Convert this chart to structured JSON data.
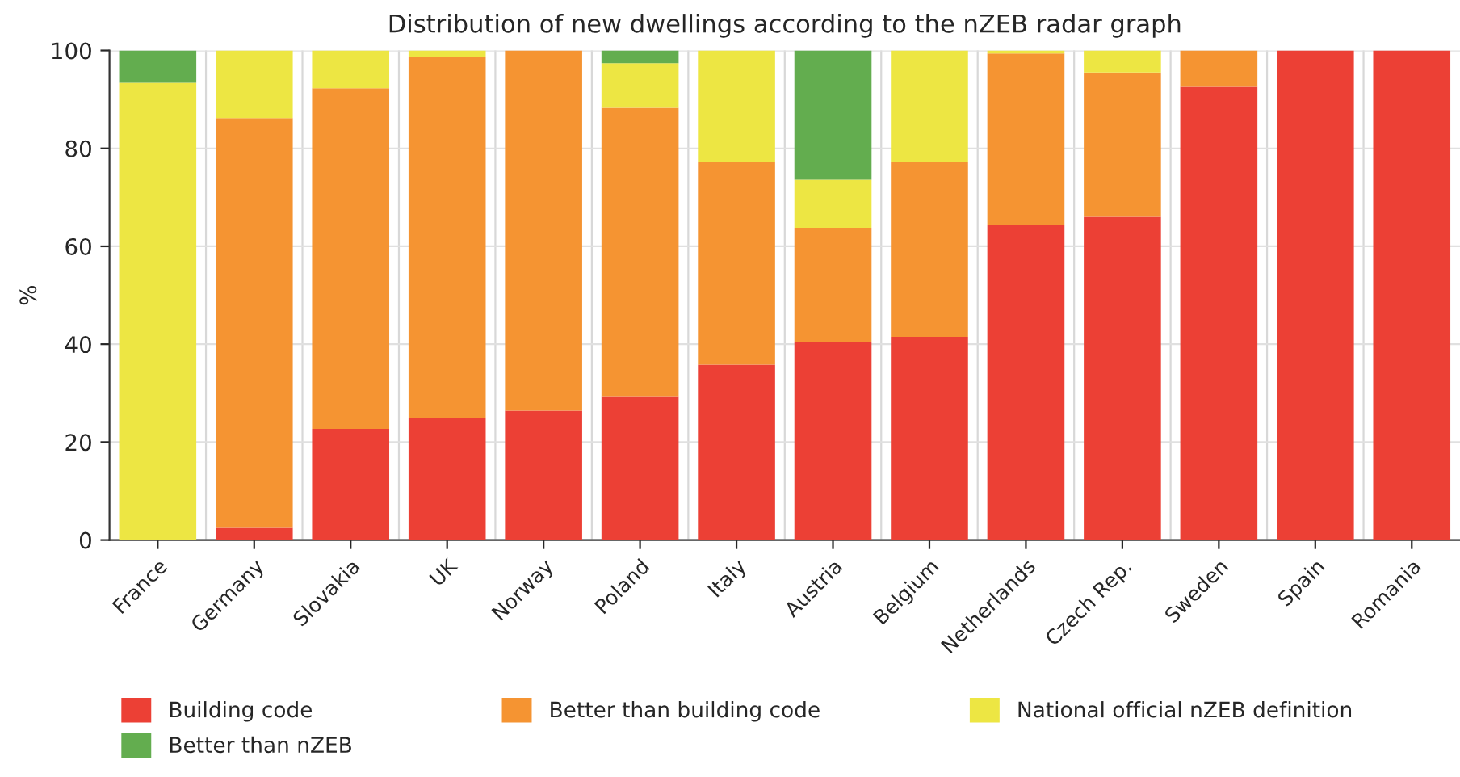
{
  "chart_data": {
    "type": "bar",
    "stacked": true,
    "title": "Distribution of new dwellings according to the nZEB radar graph",
    "ylabel": "%",
    "categories": [
      "France",
      "Germany",
      "Slovakia",
      "UK",
      "Norway",
      "Poland",
      "Italy",
      "Austria",
      "Belgium",
      "Netherlands",
      "Czech Rep.",
      "Sweden",
      "Spain",
      "Romania"
    ],
    "series": [
      {
        "name": "Building code",
        "color": "#ec4035",
        "values": [
          0,
          2.5,
          22.7,
          24.9,
          26.4,
          29.4,
          35.8,
          40.5,
          41.5,
          64.3,
          66.0,
          92.6,
          100,
          100
        ]
      },
      {
        "name": "Better than building code",
        "color": "#f59432",
        "values": [
          0,
          83.7,
          69.6,
          73.8,
          73.6,
          58.9,
          41.5,
          23.3,
          35.8,
          35.1,
          29.5,
          7.4,
          0,
          0
        ]
      },
      {
        "name": "National official nZEB definition",
        "color": "#ede643",
        "values": [
          93.4,
          13.8,
          7.7,
          1.3,
          0,
          9.1,
          22.7,
          9.8,
          22.7,
          0.6,
          4.5,
          0,
          0,
          0
        ]
      },
      {
        "name": "Better than nZEB",
        "color": "#63ad4f",
        "values": [
          6.6,
          0,
          0,
          0,
          0,
          2.6,
          0,
          26.4,
          0,
          0,
          0,
          0,
          0,
          0
        ]
      }
    ],
    "ylim": [
      0,
      100
    ],
    "yticks": [
      0,
      20,
      40,
      60,
      80,
      100
    ],
    "grid": true,
    "legend": "bottom"
  }
}
